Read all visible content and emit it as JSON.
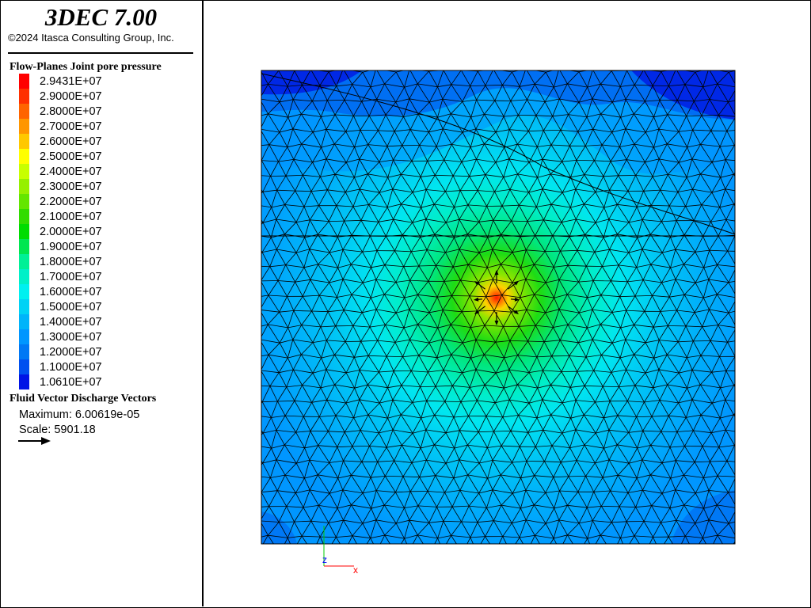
{
  "app": {
    "title": "3DEC 7.00",
    "copyright": "©2024 Itasca Consulting Group, Inc."
  },
  "legend": {
    "title": "Flow-Planes Joint pore pressure",
    "entries": [
      {
        "label": "2.9431E+07",
        "color": "#ff0000"
      },
      {
        "label": "2.9000E+07",
        "color": "#ff3000"
      },
      {
        "label": "2.8000E+07",
        "color": "#ff6400"
      },
      {
        "label": "2.7000E+07",
        "color": "#ff9600"
      },
      {
        "label": "2.6000E+07",
        "color": "#ffc800"
      },
      {
        "label": "2.5000E+07",
        "color": "#ffff00"
      },
      {
        "label": "2.4000E+07",
        "color": "#c8ff00"
      },
      {
        "label": "2.3000E+07",
        "color": "#96f000"
      },
      {
        "label": "2.2000E+07",
        "color": "#64e600"
      },
      {
        "label": "2.1000E+07",
        "color": "#32dc00"
      },
      {
        "label": "2.0000E+07",
        "color": "#00dc00"
      },
      {
        "label": "1.9000E+07",
        "color": "#00e650"
      },
      {
        "label": "1.8000E+07",
        "color": "#00f096"
      },
      {
        "label": "1.7000E+07",
        "color": "#00f0c8"
      },
      {
        "label": "1.6000E+07",
        "color": "#00f0f0"
      },
      {
        "label": "1.5000E+07",
        "color": "#00d2f5"
      },
      {
        "label": "1.4000E+07",
        "color": "#00b4fa"
      },
      {
        "label": "1.3000E+07",
        "color": "#0096ff"
      },
      {
        "label": "1.2000E+07",
        "color": "#0078f5"
      },
      {
        "label": "1.1000E+07",
        "color": "#0050f0"
      },
      {
        "label": "1.0610E+07",
        "color": "#0014e6"
      }
    ]
  },
  "vectors": {
    "title": "Fluid Vector Discharge Vectors",
    "maximum": "Maximum: 6.00619e-05",
    "scale": "Scale: 5901.18"
  },
  "axes": {
    "x_label": "x",
    "z_label": "z",
    "x_color": "#ff0000",
    "y_color": "#00cc00",
    "z_color": "#0000ff"
  }
}
